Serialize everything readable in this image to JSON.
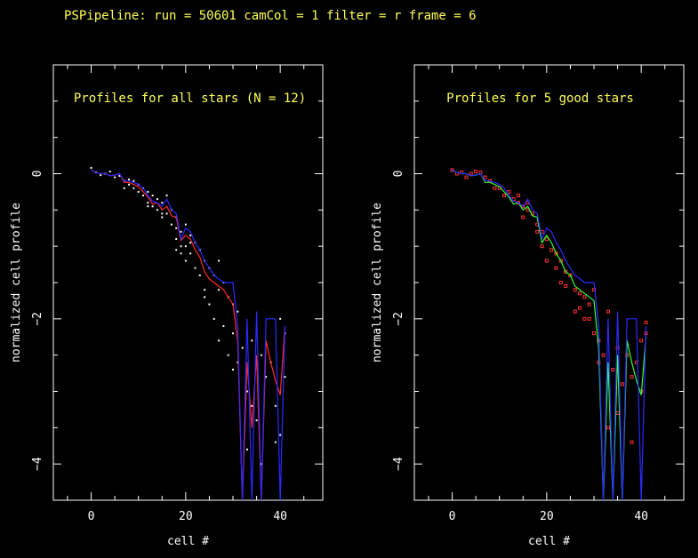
{
  "title": "PSPipeline: run = 50601 camCol = 1 filter = r frame = 6",
  "colors": {
    "title": "#ffff55",
    "points_all": "#ffffff",
    "points_good": "#ff3333",
    "mean_all": "#ff2a2a",
    "mean_good": "#33ff33",
    "model": "#2a2aff"
  },
  "chart_data": [
    {
      "type": "line",
      "title": "Profiles for all stars (N = 12)",
      "xlabel": "cell #",
      "ylabel": "normalized cell profile",
      "xlim": [
        -8,
        49
      ],
      "ylim": [
        -4.5,
        1.5
      ],
      "xticks": [
        0,
        20,
        40
      ],
      "yticks": [
        0,
        -2,
        -4
      ],
      "grid": false,
      "series": [
        {
          "role": "mean",
          "color": "#ff2a2a",
          "x": [
            0,
            1,
            2,
            3,
            4,
            5,
            6,
            7,
            8,
            9,
            10,
            11,
            12,
            13,
            14,
            15,
            16,
            17,
            18,
            19,
            20,
            21,
            22,
            23,
            24,
            25,
            26,
            27,
            28,
            29,
            30,
            31,
            32,
            33,
            34,
            35,
            36,
            37,
            38,
            39,
            40,
            41
          ],
          "y": [
            0.05,
            0.02,
            0.0,
            0.0,
            -0.03,
            -0.02,
            0.0,
            -0.12,
            -0.12,
            -0.15,
            -0.18,
            -0.25,
            -0.32,
            -0.42,
            -0.4,
            -0.5,
            -0.45,
            -0.58,
            -0.6,
            -0.92,
            -0.85,
            -0.9,
            -1.05,
            -1.15,
            -1.35,
            -1.45,
            -1.5,
            -1.55,
            -1.6,
            -1.7,
            -1.8,
            -2.3,
            -4.6,
            -2.6,
            -3.5,
            -2.5,
            -4.6,
            -2.3,
            -2.6,
            -2.85,
            -3.05,
            -2.1
          ]
        },
        {
          "role": "model",
          "color": "#2a2aff",
          "x": [
            0,
            1,
            2,
            3,
            4,
            5,
            6,
            7,
            8,
            9,
            10,
            11,
            12,
            13,
            14,
            15,
            16,
            17,
            18,
            19,
            20,
            21,
            22,
            23,
            24,
            25,
            26,
            27,
            28,
            29,
            30,
            31,
            32,
            33,
            34,
            35,
            36,
            37,
            38,
            39,
            40,
            41
          ],
          "y": [
            0.05,
            0.02,
            0.0,
            0.0,
            -0.03,
            -0.02,
            0.0,
            -0.1,
            -0.1,
            -0.12,
            -0.15,
            -0.2,
            -0.3,
            -0.38,
            -0.4,
            -0.45,
            -0.35,
            -0.5,
            -0.55,
            -0.9,
            -0.75,
            -0.8,
            -0.95,
            -1.05,
            -1.2,
            -1.3,
            -1.4,
            -1.45,
            -1.5,
            -1.5,
            -1.5,
            -2.1,
            -4.6,
            -2.0,
            -4.6,
            -1.9,
            -4.6,
            -2.0,
            -2.0,
            -2.0,
            -4.6,
            -2.1
          ]
        },
        {
          "role": "points",
          "color": "#ffffff",
          "x": [
            0,
            1,
            2,
            3,
            4,
            5,
            6,
            7,
            7,
            8,
            8,
            9,
            9,
            10,
            10,
            11,
            11,
            12,
            12,
            13,
            13,
            14,
            14,
            15,
            15,
            16,
            16,
            17,
            17,
            18,
            18,
            18,
            19,
            19,
            19,
            20,
            20,
            20,
            21,
            21,
            22,
            22,
            23,
            23,
            24,
            24,
            25,
            25,
            26,
            26,
            27,
            27,
            28,
            28,
            29,
            29,
            30,
            30,
            31,
            31,
            32,
            33,
            33,
            34,
            34,
            35,
            35,
            36,
            37,
            38,
            39,
            40,
            40,
            41,
            41,
            12,
            15,
            18,
            21,
            24,
            27,
            30,
            33,
            36,
            39
          ],
          "y": [
            0.08,
            0.02,
            -0.02,
            0.0,
            0.03,
            -0.05,
            -0.03,
            -0.1,
            -0.2,
            -0.15,
            -0.08,
            -0.2,
            -0.1,
            -0.25,
            -0.15,
            -0.3,
            -0.2,
            -0.25,
            -0.4,
            -0.45,
            -0.3,
            -0.5,
            -0.35,
            -0.4,
            -0.6,
            -0.3,
            -0.55,
            -0.5,
            -0.7,
            -0.6,
            -0.9,
            -0.75,
            -0.8,
            -1.0,
            -1.1,
            -0.7,
            -1.0,
            -1.2,
            -0.85,
            -1.1,
            -0.95,
            -1.3,
            -1.05,
            -1.4,
            -1.2,
            -1.6,
            -1.3,
            -1.8,
            -1.4,
            -2.0,
            -1.6,
            -2.3,
            -1.5,
            -2.1,
            -1.7,
            -2.5,
            -1.8,
            -2.7,
            -1.9,
            -2.6,
            -2.4,
            -2.2,
            -3.0,
            -2.3,
            -3.2,
            -2.2,
            -3.4,
            -2.5,
            -2.8,
            -2.6,
            -3.2,
            -2.0,
            -3.6,
            -2.2,
            -2.8,
            -0.45,
            -0.55,
            -1.05,
            -0.95,
            -1.7,
            -1.2,
            -2.2,
            -3.8,
            -4.0,
            -3.7
          ]
        }
      ]
    },
    {
      "type": "line",
      "title": "Profiles for 5 good stars",
      "xlabel": "cell #",
      "ylabel": "normalized cell profile",
      "xlim": [
        -8,
        49
      ],
      "ylim": [
        -4.5,
        1.5
      ],
      "xticks": [
        0,
        20,
        40
      ],
      "yticks": [
        0,
        -2,
        -4
      ],
      "grid": false,
      "series": [
        {
          "role": "mean",
          "color": "#33ff33",
          "x": [
            0,
            1,
            2,
            3,
            4,
            5,
            6,
            7,
            8,
            9,
            10,
            11,
            12,
            13,
            14,
            15,
            16,
            17,
            18,
            19,
            20,
            21,
            22,
            23,
            24,
            25,
            26,
            27,
            28,
            29,
            30,
            31,
            32,
            33,
            34,
            35,
            36,
            37,
            38,
            39,
            40,
            41
          ],
          "y": [
            0.05,
            0.02,
            0.0,
            0.0,
            -0.03,
            -0.02,
            0.0,
            -0.12,
            -0.12,
            -0.15,
            -0.18,
            -0.25,
            -0.32,
            -0.42,
            -0.4,
            -0.5,
            -0.45,
            -0.58,
            -0.6,
            -0.95,
            -0.85,
            -0.95,
            -1.1,
            -1.2,
            -1.35,
            -1.4,
            -1.55,
            -1.6,
            -1.65,
            -1.7,
            -1.75,
            -2.4,
            -4.6,
            -2.6,
            -4.6,
            -2.5,
            -4.6,
            -2.3,
            -2.6,
            -2.85,
            -3.05,
            -2.25
          ]
        },
        {
          "role": "model",
          "color": "#2a2aff",
          "x": [
            0,
            1,
            2,
            3,
            4,
            5,
            6,
            7,
            8,
            9,
            10,
            11,
            12,
            13,
            14,
            15,
            16,
            17,
            18,
            19,
            20,
            21,
            22,
            23,
            24,
            25,
            26,
            27,
            28,
            29,
            30,
            31,
            32,
            33,
            34,
            35,
            36,
            37,
            38,
            39,
            40,
            41
          ],
          "y": [
            0.05,
            0.02,
            0.0,
            0.0,
            -0.03,
            -0.02,
            0.0,
            -0.1,
            -0.1,
            -0.12,
            -0.15,
            -0.2,
            -0.3,
            -0.38,
            -0.4,
            -0.45,
            -0.35,
            -0.5,
            -0.55,
            -0.9,
            -0.75,
            -0.8,
            -0.95,
            -1.05,
            -1.2,
            -1.3,
            -1.4,
            -1.45,
            -1.5,
            -1.5,
            -1.5,
            -2.1,
            -4.6,
            -2.0,
            -4.6,
            -1.9,
            -4.6,
            -2.0,
            -2.0,
            -2.0,
            -4.6,
            -2.1
          ]
        },
        {
          "role": "points",
          "color": "#ff3333",
          "x": [
            0,
            1,
            2,
            3,
            4,
            5,
            6,
            7,
            8,
            9,
            10,
            11,
            12,
            13,
            14,
            15,
            15,
            16,
            17,
            18,
            19,
            19,
            20,
            21,
            22,
            22,
            23,
            24,
            24,
            25,
            26,
            27,
            27,
            28,
            29,
            29,
            30,
            30,
            31,
            32,
            33,
            34,
            35,
            36,
            37,
            38,
            39,
            40,
            40,
            41,
            41,
            14,
            16,
            18,
            20,
            23,
            26,
            28,
            31,
            33,
            35,
            38
          ],
          "y": [
            0.05,
            0.0,
            0.02,
            -0.05,
            0.0,
            0.03,
            0.02,
            -0.05,
            -0.1,
            -0.2,
            -0.2,
            -0.3,
            -0.25,
            -0.35,
            -0.3,
            -0.45,
            -0.6,
            -0.4,
            -0.55,
            -0.7,
            -0.8,
            -1.0,
            -0.9,
            -1.05,
            -1.1,
            -1.3,
            -1.2,
            -1.35,
            -1.55,
            -1.4,
            -1.6,
            -1.65,
            -1.85,
            -1.7,
            -1.8,
            -2.0,
            -1.6,
            -2.2,
            -2.3,
            -2.5,
            -1.9,
            -2.7,
            -2.4,
            -2.9,
            -2.5,
            -2.8,
            -2.6,
            -2.3,
            -3.0,
            -2.05,
            -2.2,
            -0.4,
            -0.5,
            -0.8,
            -1.2,
            -1.5,
            -1.9,
            -2.0,
            -2.6,
            -3.5,
            -3.3,
            -3.7
          ]
        }
      ]
    }
  ]
}
